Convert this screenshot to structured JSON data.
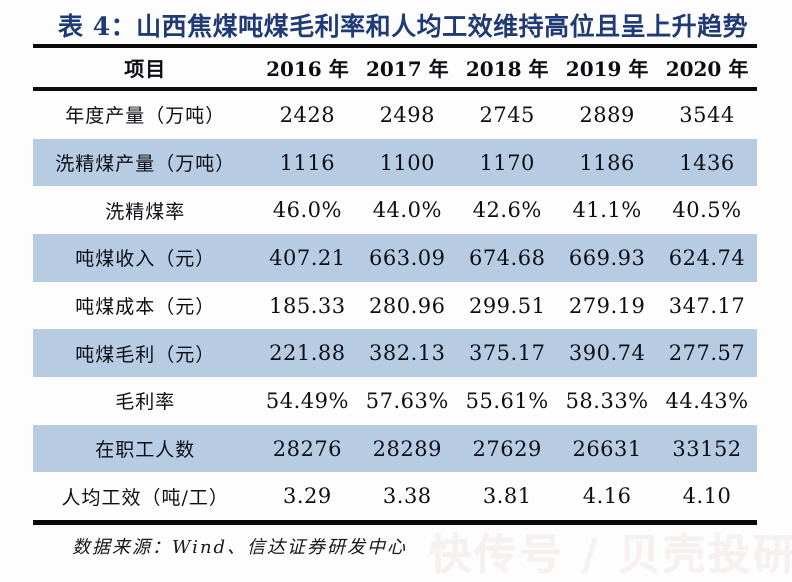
{
  "title": "表 4：山西焦煤吨煤毛利率和人均工效维持高位且呈上升趋势",
  "colors": {
    "title_navy": "#1f3a75",
    "rule_black": "#0a0a0a",
    "row_shade_blue": "#b7cce2",
    "text_black": "#0e0e16"
  },
  "table": {
    "header": [
      "项目",
      "2016 年",
      "2017 年",
      "2018 年",
      "2019 年",
      "2020 年"
    ],
    "rows": [
      {
        "label": "年度产量（万吨）",
        "values": [
          "2428",
          "2498",
          "2745",
          "2889",
          "3544"
        ],
        "shaded": false
      },
      {
        "label": "洗精煤产量（万吨）",
        "values": [
          "1116",
          "1100",
          "1170",
          "1186",
          "1436"
        ],
        "shaded": true
      },
      {
        "label": "洗精煤率",
        "values": [
          "46.0%",
          "44.0%",
          "42.6%",
          "41.1%",
          "40.5%"
        ],
        "shaded": false
      },
      {
        "label": "吨煤收入（元）",
        "values": [
          "407.21",
          "663.09",
          "674.68",
          "669.93",
          "624.74"
        ],
        "shaded": true
      },
      {
        "label": "吨煤成本（元）",
        "values": [
          "185.33",
          "280.96",
          "299.51",
          "279.19",
          "347.17"
        ],
        "shaded": false
      },
      {
        "label": "吨煤毛利（元）",
        "values": [
          "221.88",
          "382.13",
          "375.17",
          "390.74",
          "277.57"
        ],
        "shaded": true
      },
      {
        "label": "毛利率",
        "values": [
          "54.49%",
          "57.63%",
          "55.61%",
          "58.33%",
          "44.43%"
        ],
        "shaded": false
      },
      {
        "label": "在职工人数",
        "values": [
          "28276",
          "28289",
          "27629",
          "26631",
          "33152"
        ],
        "shaded": true
      },
      {
        "label": "人均工效（吨/工）",
        "values": [
          "3.29",
          "3.38",
          "3.81",
          "4.16",
          "4.10"
        ],
        "shaded": false
      }
    ]
  },
  "footer": {
    "source": "数据来源：Wind、信达证券研发中心"
  },
  "watermark": "快传号 / 贝壳投研"
}
